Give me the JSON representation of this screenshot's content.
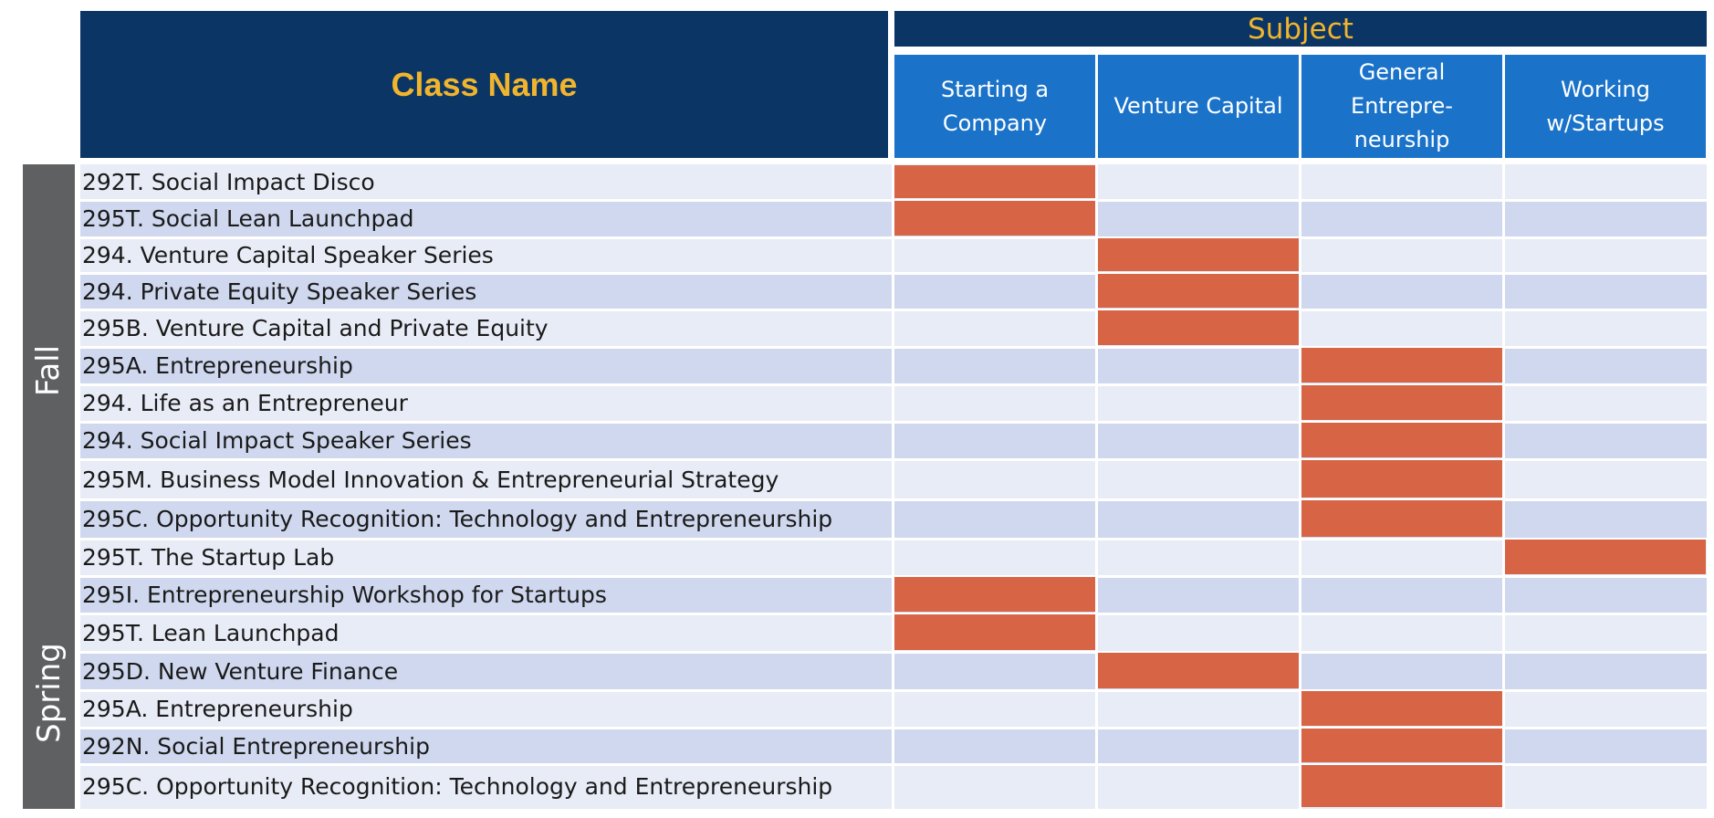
{
  "chart_data": {
    "type": "table",
    "header": {
      "class_name": "Class Name",
      "subject": "Subject",
      "subjects": [
        "Starting a\nCompany",
        "Venture Capital",
        "General\nEntrepre-\nneurship",
        "Working\nw/Startups"
      ]
    },
    "terms": [
      {
        "name": "Fall",
        "rows": 11
      },
      {
        "name": "Spring",
        "rows": 6
      }
    ],
    "rows": [
      {
        "term": "Fall",
        "name": "292T. Social Impact Disco",
        "subject_index": 0
      },
      {
        "term": "Fall",
        "name": "295T. Social Lean Launchpad",
        "subject_index": 0
      },
      {
        "term": "Fall",
        "name": "294. Venture Capital Speaker Series",
        "subject_index": 1
      },
      {
        "term": "Fall",
        "name": "294. Private Equity Speaker Series",
        "subject_index": 1
      },
      {
        "term": "Fall",
        "name": "295B. Venture Capital and Private Equity",
        "subject_index": 1
      },
      {
        "term": "Fall",
        "name": "295A. Entrepreneurship",
        "subject_index": 2
      },
      {
        "term": "Fall",
        "name": "294. Life as an Entrepreneur",
        "subject_index": 2
      },
      {
        "term": "Fall",
        "name": "294. Social Impact Speaker Series",
        "subject_index": 2
      },
      {
        "term": "Fall",
        "name": "295M. Business Model Innovation & Entrepreneurial Strategy",
        "subject_index": 2
      },
      {
        "term": "Fall",
        "name": "295C. Opportunity Recognition: Technology and Entrepreneurship",
        "subject_index": 2
      },
      {
        "term": "Fall",
        "name": "295T. The Startup Lab",
        "subject_index": 3
      },
      {
        "term": "Spring",
        "name": "295I. Entrepreneurship Workshop for Startups",
        "subject_index": 0
      },
      {
        "term": "Spring",
        "name": "295T. Lean Launchpad",
        "subject_index": 0
      },
      {
        "term": "Spring",
        "name": "295D. New Venture Finance",
        "subject_index": 1
      },
      {
        "term": "Spring",
        "name": "295A. Entrepreneurship",
        "subject_index": 2
      },
      {
        "term": "Spring",
        "name": "292N. Social Entrepreneurship",
        "subject_index": 2
      },
      {
        "term": "Spring",
        "name": "295C. Opportunity Recognition: Technology and Entrepreneurship",
        "subject_index": 2
      }
    ]
  },
  "colors": {
    "header_dark": "#0b3565",
    "header_blue": "#1a73c9",
    "header_text": "#f1b52d",
    "marker": "#d76444",
    "row_light": "#e8ecf6",
    "row_dark": "#cfd8ee",
    "term_band": "#5f6062"
  }
}
